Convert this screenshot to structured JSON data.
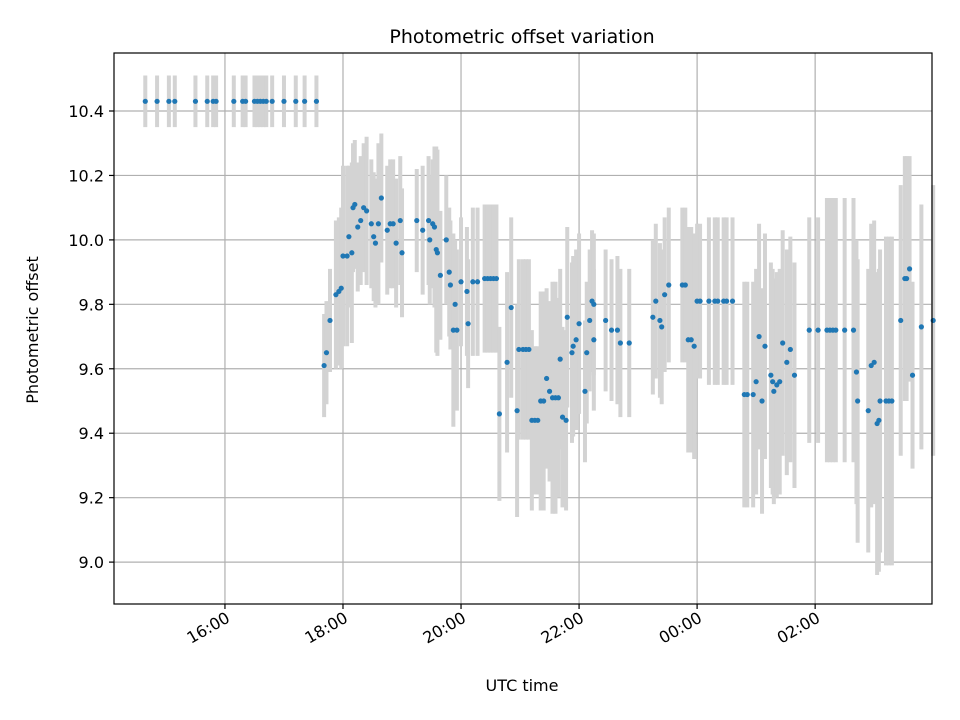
{
  "chart_data": {
    "type": "scatter",
    "title": "Photometric offset variation",
    "xlabel": "UTC time",
    "ylabel": "Photometric offset",
    "x_unit": "hours since 00:00 of first day",
    "xlim": [
      14.12,
      27.98
    ],
    "ylim": [
      8.87,
      10.58
    ],
    "grid": true,
    "x_ticks": [
      {
        "value": 16,
        "label": "16:00"
      },
      {
        "value": 18,
        "label": "18:00"
      },
      {
        "value": 20,
        "label": "20:00"
      },
      {
        "value": 22,
        "label": "22:00"
      },
      {
        "value": 24,
        "label": "00:00"
      },
      {
        "value": 26,
        "label": "02:00"
      }
    ],
    "y_ticks": [
      {
        "value": 9.0,
        "label": "9.0"
      },
      {
        "value": 9.2,
        "label": "9.2"
      },
      {
        "value": 9.4,
        "label": "9.4"
      },
      {
        "value": 9.6,
        "label": "9.6"
      },
      {
        "value": 9.8,
        "label": "9.8"
      },
      {
        "value": 10.0,
        "label": "10.0"
      },
      {
        "value": 10.2,
        "label": "10.2"
      },
      {
        "value": 10.4,
        "label": "10.4"
      }
    ],
    "marker_color": "#1f77b4",
    "errorbar_color": "#d3d3d3",
    "series": [
      {
        "name": "offset",
        "points": [
          [
            14.65,
            10.43,
            0.08
          ],
          [
            14.85,
            10.43,
            0.08
          ],
          [
            15.05,
            10.43,
            0.08
          ],
          [
            15.15,
            10.43,
            0.08
          ],
          [
            15.5,
            10.43,
            0.08
          ],
          [
            15.7,
            10.43,
            0.08
          ],
          [
            15.8,
            10.43,
            0.08
          ],
          [
            15.85,
            10.43,
            0.08
          ],
          [
            16.15,
            10.43,
            0.08
          ],
          [
            16.3,
            10.43,
            0.08
          ],
          [
            16.35,
            10.43,
            0.08
          ],
          [
            16.5,
            10.43,
            0.08
          ],
          [
            16.55,
            10.43,
            0.08
          ],
          [
            16.6,
            10.43,
            0.08
          ],
          [
            16.65,
            10.43,
            0.08
          ],
          [
            16.7,
            10.43,
            0.08
          ],
          [
            16.8,
            10.43,
            0.08
          ],
          [
            17.0,
            10.43,
            0.08
          ],
          [
            17.2,
            10.43,
            0.08
          ],
          [
            17.35,
            10.43,
            0.08
          ],
          [
            17.55,
            10.43,
            0.08
          ],
          [
            17.68,
            9.61,
            0.16
          ],
          [
            17.72,
            9.65,
            0.16
          ],
          [
            17.78,
            9.75,
            0.16
          ],
          [
            17.88,
            9.83,
            0.23
          ],
          [
            17.93,
            9.84,
            0.23
          ],
          [
            17.97,
            9.85,
            0.25
          ],
          [
            18.0,
            9.95,
            0.28
          ],
          [
            18.07,
            9.95,
            0.28
          ],
          [
            18.1,
            10.01,
            0.22
          ],
          [
            18.15,
            9.96,
            0.28
          ],
          [
            18.17,
            10.1,
            0.2
          ],
          [
            18.2,
            10.11,
            0.2
          ],
          [
            18.25,
            10.04,
            0.2
          ],
          [
            18.3,
            10.06,
            0.2
          ],
          [
            18.35,
            10.1,
            0.2
          ],
          [
            18.4,
            10.09,
            0.23
          ],
          [
            18.48,
            10.05,
            0.2
          ],
          [
            18.52,
            10.01,
            0.2
          ],
          [
            18.55,
            9.99,
            0.2
          ],
          [
            18.6,
            10.05,
            0.25
          ],
          [
            18.65,
            10.13,
            0.2
          ],
          [
            18.75,
            10.03,
            0.2
          ],
          [
            18.8,
            10.05,
            0.2
          ],
          [
            18.85,
            10.05,
            0.2
          ],
          [
            18.9,
            9.99,
            0.2
          ],
          [
            19.0,
            9.96,
            0.2
          ],
          [
            18.97,
            10.06,
            0.2
          ],
          [
            19.25,
            10.06,
            0.16
          ],
          [
            19.35,
            10.03,
            0.2
          ],
          [
            19.45,
            10.06,
            0.2
          ],
          [
            19.47,
            10.0,
            0.2
          ],
          [
            19.52,
            10.05,
            0.2
          ],
          [
            19.55,
            10.04,
            0.25
          ],
          [
            19.58,
            9.97,
            0.32
          ],
          [
            19.6,
            9.96,
            0.32
          ],
          [
            19.65,
            9.89,
            0.2
          ],
          [
            19.75,
            10.0,
            0.2
          ],
          [
            19.8,
            9.9,
            0.2
          ],
          [
            19.82,
            9.86,
            0.2
          ],
          [
            19.87,
            9.72,
            0.3
          ],
          [
            19.9,
            9.8,
            0.2
          ],
          [
            19.93,
            9.72,
            0.25
          ],
          [
            20.0,
            9.87,
            0.2
          ],
          [
            20.1,
            9.84,
            0.2
          ],
          [
            20.12,
            9.74,
            0.2
          ],
          [
            20.2,
            9.87,
            0.23
          ],
          [
            20.28,
            9.87,
            0.23
          ],
          [
            20.4,
            9.88,
            0.23
          ],
          [
            20.45,
            9.88,
            0.23
          ],
          [
            20.5,
            9.88,
            0.23
          ],
          [
            20.55,
            9.88,
            0.23
          ],
          [
            20.6,
            9.88,
            0.23
          ],
          [
            20.65,
            9.46,
            0.27
          ],
          [
            20.78,
            9.62,
            0.28
          ],
          [
            20.85,
            9.79,
            0.28
          ],
          [
            20.95,
            9.47,
            0.33
          ],
          [
            20.98,
            9.66,
            0.28
          ],
          [
            21.05,
            9.66,
            0.28
          ],
          [
            21.1,
            9.66,
            0.28
          ],
          [
            21.15,
            9.66,
            0.28
          ],
          [
            21.2,
            9.44,
            0.28
          ],
          [
            21.25,
            9.44,
            0.23
          ],
          [
            21.3,
            9.44,
            0.23
          ],
          [
            21.35,
            9.5,
            0.34
          ],
          [
            21.4,
            9.5,
            0.34
          ],
          [
            21.45,
            9.57,
            0.28
          ],
          [
            21.5,
            9.53,
            0.28
          ],
          [
            21.55,
            9.51,
            0.36
          ],
          [
            21.6,
            9.51,
            0.36
          ],
          [
            21.65,
            9.51,
            0.31
          ],
          [
            21.68,
            9.63,
            0.28
          ],
          [
            21.72,
            9.45,
            0.28
          ],
          [
            21.78,
            9.44,
            0.28
          ],
          [
            21.8,
            9.76,
            0.28
          ],
          [
            21.88,
            9.65,
            0.28
          ],
          [
            21.9,
            9.67,
            0.28
          ],
          [
            21.95,
            9.69,
            0.28
          ],
          [
            22.0,
            9.74,
            0.28
          ],
          [
            22.1,
            9.53,
            0.22
          ],
          [
            22.13,
            9.65,
            0.22
          ],
          [
            22.18,
            9.75,
            0.22
          ],
          [
            22.22,
            9.81,
            0.22
          ],
          [
            22.25,
            9.69,
            0.22
          ],
          [
            22.25,
            9.8,
            0.22
          ],
          [
            22.45,
            9.75,
            0.22
          ],
          [
            22.55,
            9.72,
            0.22
          ],
          [
            22.65,
            9.72,
            0.23
          ],
          [
            22.7,
            9.68,
            0.23
          ],
          [
            22.85,
            9.68,
            0.23
          ],
          [
            23.25,
            9.76,
            0.24
          ],
          [
            23.3,
            9.81,
            0.24
          ],
          [
            23.37,
            9.75,
            0.24
          ],
          [
            23.4,
            9.73,
            0.24
          ],
          [
            23.45,
            9.83,
            0.24
          ],
          [
            23.52,
            9.86,
            0.24
          ],
          [
            23.75,
            9.86,
            0.24
          ],
          [
            23.8,
            9.86,
            0.24
          ],
          [
            23.85,
            9.69,
            0.35
          ],
          [
            23.9,
            9.69,
            0.35
          ],
          [
            23.95,
            9.67,
            0.35
          ],
          [
            24.0,
            9.81,
            0.24
          ],
          [
            24.05,
            9.81,
            0.24
          ],
          [
            24.2,
            9.81,
            0.26
          ],
          [
            24.3,
            9.81,
            0.26
          ],
          [
            24.35,
            9.81,
            0.26
          ],
          [
            24.45,
            9.81,
            0.26
          ],
          [
            24.5,
            9.81,
            0.26
          ],
          [
            24.6,
            9.81,
            0.26
          ],
          [
            24.8,
            9.52,
            0.35
          ],
          [
            24.85,
            9.52,
            0.35
          ],
          [
            24.95,
            9.52,
            0.35
          ],
          [
            25.0,
            9.56,
            0.35
          ],
          [
            25.1,
            9.5,
            0.35
          ],
          [
            25.05,
            9.7,
            0.35
          ],
          [
            25.15,
            9.67,
            0.35
          ],
          [
            25.25,
            9.58,
            0.35
          ],
          [
            25.28,
            9.56,
            0.35
          ],
          [
            25.3,
            9.53,
            0.35
          ],
          [
            25.35,
            9.55,
            0.35
          ],
          [
            25.4,
            9.56,
            0.35
          ],
          [
            25.45,
            9.68,
            0.35
          ],
          [
            25.52,
            9.62,
            0.35
          ],
          [
            25.58,
            9.66,
            0.35
          ],
          [
            25.65,
            9.58,
            0.35
          ],
          [
            25.9,
            9.72,
            0.35
          ],
          [
            26.05,
            9.72,
            0.35
          ],
          [
            26.2,
            9.72,
            0.41
          ],
          [
            26.25,
            9.72,
            0.41
          ],
          [
            26.3,
            9.72,
            0.41
          ],
          [
            26.35,
            9.72,
            0.41
          ],
          [
            26.5,
            9.72,
            0.41
          ],
          [
            26.65,
            9.72,
            0.41
          ],
          [
            26.7,
            9.59,
            0.41
          ],
          [
            26.72,
            9.5,
            0.44
          ],
          [
            26.9,
            9.47,
            0.44
          ],
          [
            26.95,
            9.61,
            0.44
          ],
          [
            27.0,
            9.62,
            0.44
          ],
          [
            27.05,
            9.43,
            0.47
          ],
          [
            27.08,
            9.44,
            0.47
          ],
          [
            27.1,
            9.5,
            0.47
          ],
          [
            27.2,
            9.5,
            0.51
          ],
          [
            27.25,
            9.5,
            0.51
          ],
          [
            27.3,
            9.5,
            0.51
          ],
          [
            27.45,
            9.75,
            0.42
          ],
          [
            27.52,
            9.88,
            0.38
          ],
          [
            27.55,
            9.88,
            0.38
          ],
          [
            27.6,
            9.91,
            0.35
          ],
          [
            27.65,
            9.58,
            0.29
          ],
          [
            27.8,
            9.73,
            0.38
          ],
          [
            28.0,
            9.75,
            0.42
          ]
        ]
      }
    ]
  }
}
